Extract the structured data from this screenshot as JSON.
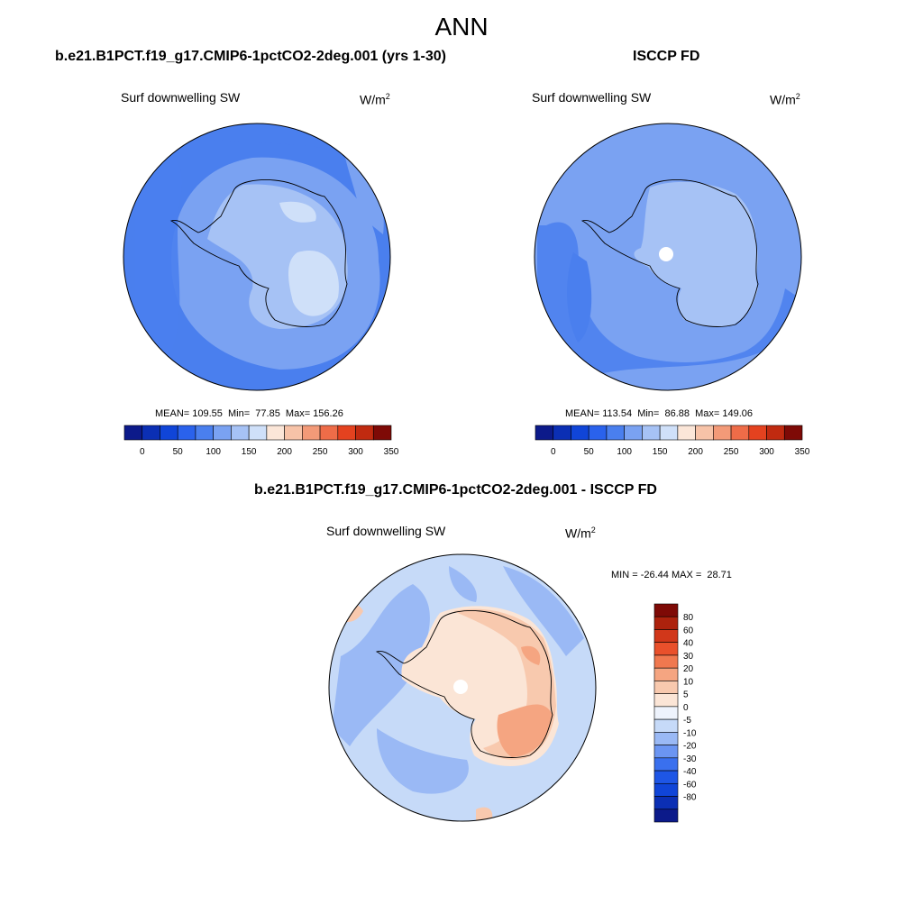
{
  "title": "ANN",
  "colors": {
    "abs_scale": [
      "#0c1a8a",
      "#0b2fb4",
      "#1045d8",
      "#2a62ec",
      "#4a7fee",
      "#7aa2f2",
      "#a6c2f5",
      "#cfe0f9",
      "#fbe6d8",
      "#f7c3a8",
      "#f39a78",
      "#ee6c48",
      "#e4421f",
      "#c02a10",
      "#7e0a06"
    ],
    "diff_scale": [
      "#0c1a8a",
      "#0b2fb4",
      "#1045d8",
      "#1e56e6",
      "#3a70ee",
      "#6b95f2",
      "#9ab9f5",
      "#c6daf8",
      "#eef3fc",
      "#fbe5d6",
      "#f8c9ae",
      "#f5a581",
      "#f0784f",
      "#e9502b",
      "#d1371a",
      "#ad220d",
      "#7e0a06"
    ]
  },
  "panels": {
    "left": {
      "title": "b.e21.B1PCT.f19_g17.CMIP6-1pctCO2-2deg.001 (yrs 1-30)",
      "variable": "Surf downwelling SW",
      "units_base": "W/m",
      "units_exp": "2",
      "stats": "MEAN= 109.55  Min=  77.85  Max= 156.26",
      "colorbar_labels": [
        "0",
        "50",
        "100",
        "150",
        "200",
        "250",
        "300",
        "350"
      ]
    },
    "right": {
      "title": "ISCCP FD",
      "variable": "Surf downwelling SW",
      "units_base": "W/m",
      "units_exp": "2",
      "stats": "MEAN= 113.54  Min=  86.88  Max= 149.06",
      "colorbar_labels": [
        "0",
        "50",
        "100",
        "150",
        "200",
        "250",
        "300",
        "350"
      ]
    },
    "diff": {
      "title": "b.e21.B1PCT.f19_g17.CMIP6-1pctCO2-2deg.001 - ISCCP FD",
      "variable": "Surf downwelling SW",
      "units_base": "W/m",
      "units_exp": "2",
      "stats": "MIN = -26.44 MAX =  28.71",
      "colorbar_labels": [
        "80",
        "60",
        "40",
        "30",
        "20",
        "10",
        "5",
        "0",
        "-5",
        "-10",
        "-20",
        "-30",
        "-40",
        "-60",
        "-80"
      ]
    }
  }
}
